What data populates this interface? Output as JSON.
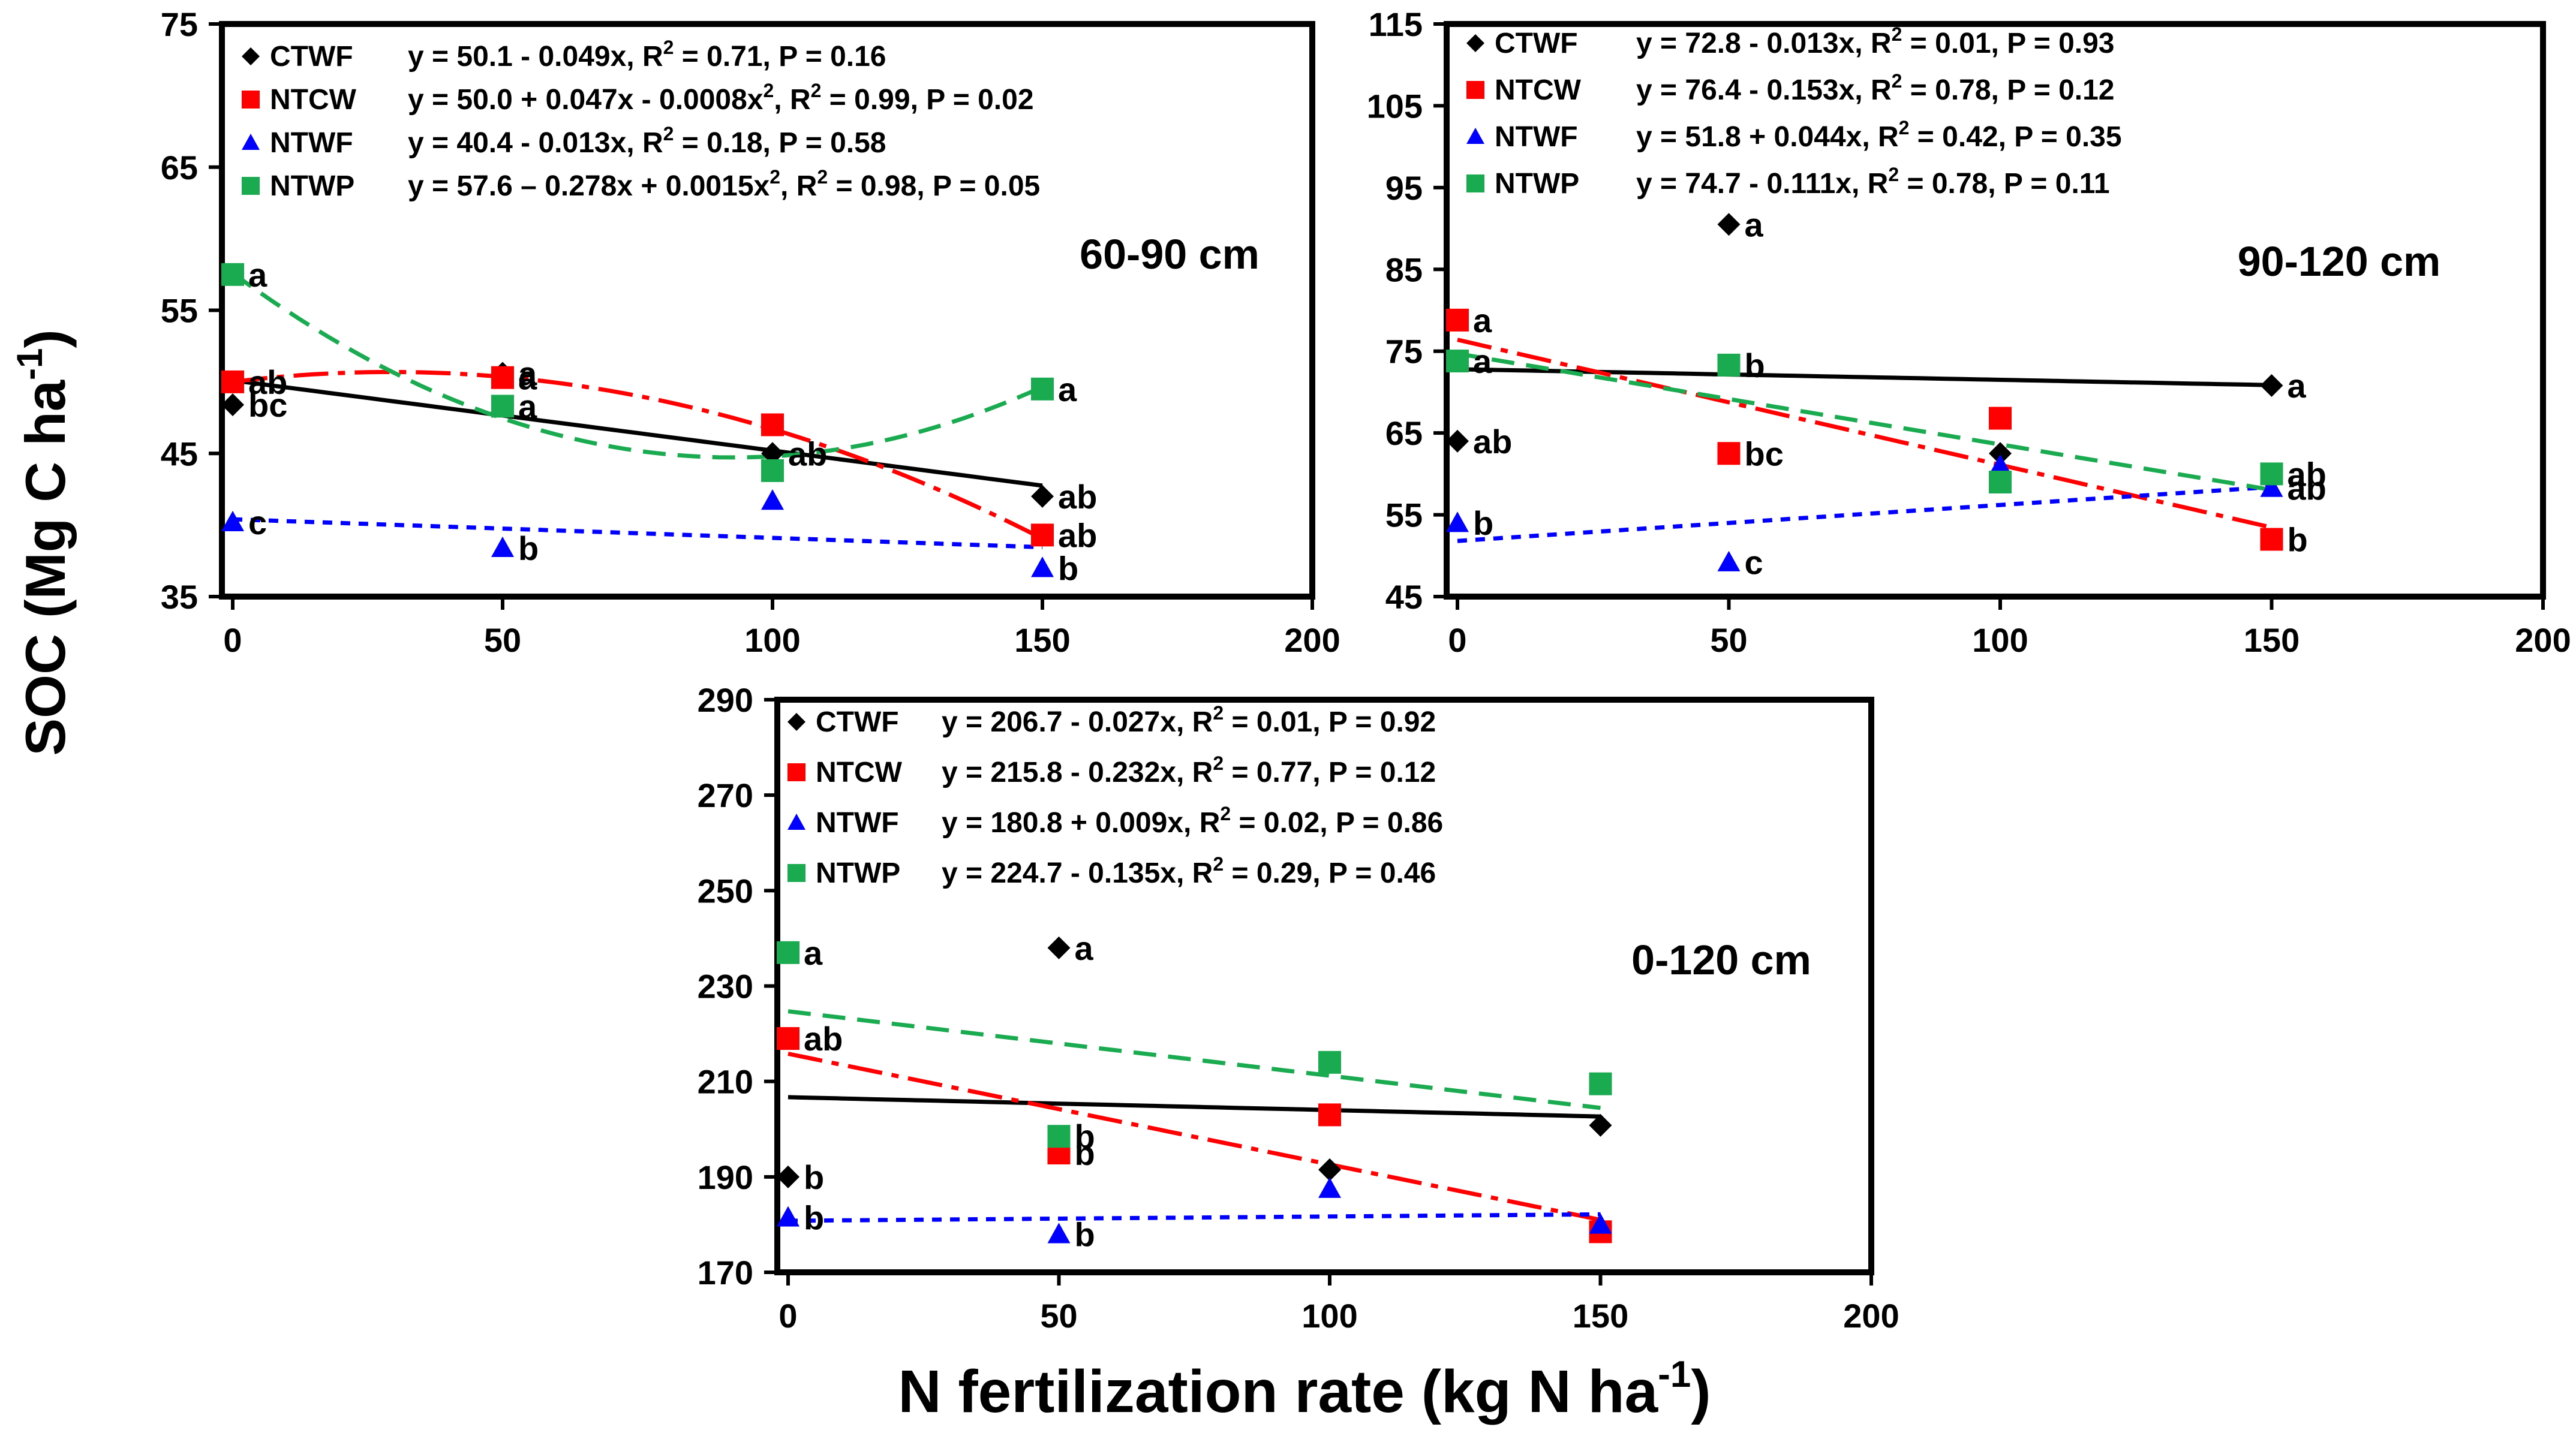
{
  "figure": {
    "y_axis_label": "SOC (Mg C ha",
    "y_axis_label_sup": "-1",
    "y_axis_label_end": ")",
    "x_axis_label": "N fertilization rate (kg N ha",
    "x_axis_label_sup": "-1",
    "x_axis_label_end": ")"
  },
  "chart_data": [
    {
      "type": "scatter",
      "title": "60-90 cm",
      "xlim": [
        0,
        200
      ],
      "ylim": [
        35,
        75
      ],
      "x_ticks": [
        0,
        50,
        100,
        150,
        200
      ],
      "y_ticks": [
        35,
        45,
        55,
        65,
        75
      ],
      "series": [
        {
          "name": "CTWF",
          "marker": "diamond",
          "color": "#000000",
          "line": "solid",
          "points": [
            [
              0,
              48.4
            ],
            [
              50,
              50.6
            ],
            [
              100,
              45.0
            ],
            [
              150,
              42.0
            ]
          ],
          "letters": [
            "bc",
            "a",
            "ab",
            "ab"
          ],
          "fit": [
            50.1,
            -0.049,
            0
          ],
          "equation": "y = 50.1 - 0.049x, R² = 0.71, P = 0.16"
        },
        {
          "name": "NTCW",
          "marker": "square",
          "color": "#ff0000",
          "line": "dashdot",
          "points": [
            [
              0,
              50.0
            ],
            [
              50,
              50.3
            ],
            [
              100,
              47.0
            ],
            [
              150,
              39.3
            ]
          ],
          "letters": [
            "ab",
            "a",
            "",
            "ab"
          ],
          "fit": [
            50.0,
            0.047,
            -0.0008
          ],
          "equation": "y = 50.0 + 0.047x - 0.0008x², R² = 0.99, P = 0.02"
        },
        {
          "name": "NTWF",
          "marker": "triangle",
          "color": "#0000ff",
          "line": "dotted",
          "points": [
            [
              0,
              40.2
            ],
            [
              50,
              38.4
            ],
            [
              100,
              41.7
            ],
            [
              150,
              37.0
            ]
          ],
          "letters": [
            "c",
            "b",
            "",
            "b"
          ],
          "fit": [
            40.4,
            -0.013,
            0
          ],
          "equation": "y = 40.4 - 0.013x, R² = 0.18, P = 0.58"
        },
        {
          "name": "NTWP",
          "marker": "square",
          "color": "#1aaa50",
          "line": "dashed",
          "points": [
            [
              0,
              57.5
            ],
            [
              50,
              48.3
            ],
            [
              100,
              43.8
            ],
            [
              150,
              49.5
            ]
          ],
          "letters": [
            "a",
            "a",
            "",
            "a"
          ],
          "fit": [
            57.6,
            -0.278,
            0.0015
          ],
          "equation": "y = 57.6 – 0.278x + 0.0015x², R² = 0.98, P = 0.05"
        }
      ]
    },
    {
      "type": "scatter",
      "title": "90-120 cm",
      "xlim": [
        0,
        200
      ],
      "ylim": [
        45,
        115
      ],
      "x_ticks": [
        0,
        50,
        100,
        150,
        200
      ],
      "y_ticks": [
        45,
        55,
        65,
        75,
        85,
        95,
        105,
        115
      ],
      "series": [
        {
          "name": "CTWF",
          "marker": "diamond",
          "color": "#000000",
          "line": "solid",
          "points": [
            [
              0,
              64.0
            ],
            [
              50,
              90.5
            ],
            [
              100,
              62.5
            ],
            [
              150,
              70.8
            ]
          ],
          "letters": [
            "ab",
            "a",
            "",
            "a"
          ],
          "fit": [
            72.8,
            -0.013,
            0
          ],
          "equation": "y = 72.8 - 0.013x, R² = 0.01, P = 0.93"
        },
        {
          "name": "NTCW",
          "marker": "square",
          "color": "#ff0000",
          "line": "dashdot",
          "points": [
            [
              0,
              78.8
            ],
            [
              50,
              62.5
            ],
            [
              100,
              66.8
            ],
            [
              150,
              52.0
            ]
          ],
          "letters": [
            "a",
            "bc",
            "",
            "b"
          ],
          "fit": [
            76.4,
            -0.153,
            0
          ],
          "equation": "y = 76.4 - 0.153x, R² = 0.78, P = 0.12"
        },
        {
          "name": "NTWF",
          "marker": "triangle",
          "color": "#0000ff",
          "line": "dotted",
          "points": [
            [
              0,
              54.0
            ],
            [
              50,
              49.2
            ],
            [
              100,
              61.0
            ],
            [
              150,
              58.3
            ]
          ],
          "letters": [
            "b",
            "c",
            "",
            "ab"
          ],
          "fit": [
            51.8,
            0.044,
            0
          ],
          "equation": "y = 51.8 + 0.044x, R² = 0.42, P = 0.35"
        },
        {
          "name": "NTWP",
          "marker": "square",
          "color": "#1aaa50",
          "line": "dashed",
          "points": [
            [
              0,
              73.8
            ],
            [
              50,
              73.3
            ],
            [
              100,
              59.0
            ],
            [
              150,
              60.0
            ]
          ],
          "letters": [
            "a",
            "b",
            "",
            "ab"
          ],
          "fit": [
            74.7,
            -0.111,
            0
          ],
          "equation": "y = 74.7 - 0.111x, R² = 0.78, P = 0.11"
        }
      ]
    },
    {
      "type": "scatter",
      "title": "0-120 cm",
      "xlim": [
        0,
        200
      ],
      "ylim": [
        170,
        290
      ],
      "x_ticks": [
        0,
        50,
        100,
        150,
        200
      ],
      "y_ticks": [
        170,
        190,
        210,
        230,
        250,
        270,
        290
      ],
      "series": [
        {
          "name": "CTWF",
          "marker": "diamond",
          "color": "#000000",
          "line": "solid",
          "points": [
            [
              0,
              190.0
            ],
            [
              50,
              238.0
            ],
            [
              100,
              191.5
            ],
            [
              150,
              200.8
            ]
          ],
          "letters": [
            "b",
            "a",
            "",
            ""
          ],
          "fit": [
            206.7,
            -0.027,
            0
          ],
          "equation": "y = 206.7 - 0.027x, R² = 0.01, P = 0.92"
        },
        {
          "name": "NTCW",
          "marker": "square",
          "color": "#ff0000",
          "line": "dashdot",
          "points": [
            [
              0,
              219.0
            ],
            [
              50,
              195.0
            ],
            [
              100,
              203.0
            ],
            [
              150,
              178.5
            ]
          ],
          "letters": [
            "ab",
            "b",
            "",
            ""
          ],
          "fit": [
            215.8,
            -0.232,
            0
          ],
          "equation": "y = 215.8 - 0.232x, R² = 0.77, P = 0.12"
        },
        {
          "name": "NTWF",
          "marker": "triangle",
          "color": "#0000ff",
          "line": "dotted",
          "points": [
            [
              0,
              181.5
            ],
            [
              50,
              178.0
            ],
            [
              100,
              187.5
            ],
            [
              150,
              180.0
            ]
          ],
          "letters": [
            "b",
            "b",
            "",
            ""
          ],
          "fit": [
            180.8,
            0.009,
            0
          ],
          "equation": "y = 180.8 + 0.009x, R² = 0.02,  P = 0.86"
        },
        {
          "name": "NTWP",
          "marker": "square",
          "color": "#1aaa50",
          "line": "dashed",
          "points": [
            [
              0,
              237.0
            ],
            [
              50,
              198.5
            ],
            [
              100,
              214.0
            ],
            [
              150,
              209.5
            ]
          ],
          "letters": [
            "a",
            "b",
            "",
            ""
          ],
          "fit": [
            224.7,
            -0.135,
            0
          ],
          "equation": "y = 224.7 - 0.135x, R² = 0.29, P = 0.46"
        }
      ]
    }
  ]
}
